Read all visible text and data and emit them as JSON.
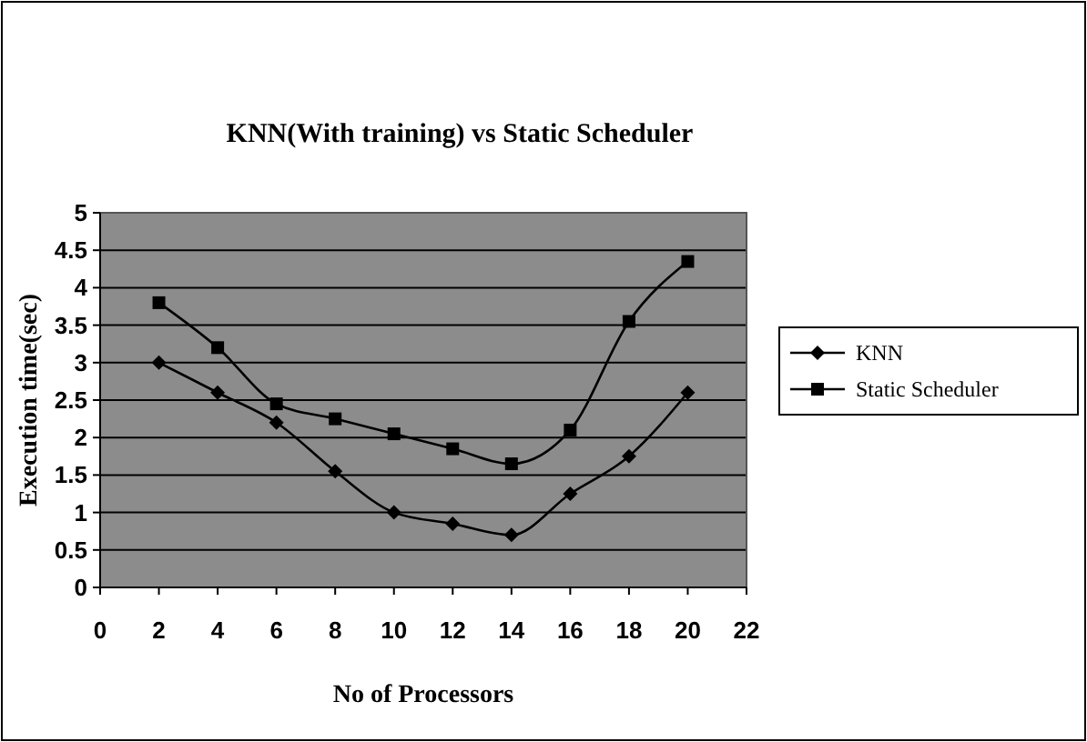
{
  "chart_data": {
    "type": "line",
    "title": "KNN(With training) vs Static Scheduler",
    "xlabel": "No of Processors",
    "ylabel": "Execution time(sec)",
    "x": [
      2,
      4,
      6,
      8,
      10,
      12,
      14,
      16,
      18,
      20
    ],
    "series": [
      {
        "name": "KNN",
        "color": "#000000",
        "marker": "diamond",
        "values": [
          3.0,
          2.6,
          2.2,
          1.55,
          1.0,
          0.85,
          0.7,
          1.25,
          1.75,
          2.6
        ]
      },
      {
        "name": "Static Scheduler",
        "color": "#000000",
        "marker": "square",
        "values": [
          3.8,
          3.2,
          2.45,
          2.25,
          2.05,
          1.85,
          1.65,
          2.1,
          3.55,
          4.35
        ]
      }
    ],
    "xlim": [
      0,
      22
    ],
    "xticks": [
      0,
      2,
      4,
      6,
      8,
      10,
      12,
      14,
      16,
      18,
      20,
      22
    ],
    "ylim": [
      0,
      5
    ],
    "yticks": [
      0,
      0.5,
      1,
      1.5,
      2,
      2.5,
      3,
      3.5,
      4,
      4.5,
      5
    ],
    "grid": "y",
    "legend": "right"
  }
}
